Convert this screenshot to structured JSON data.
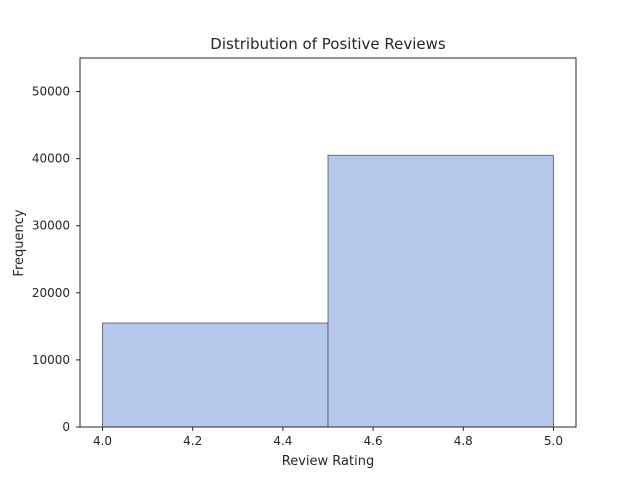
{
  "chart_data": {
    "type": "bar",
    "title": "Distribution of Positive Reviews",
    "xlabel": "Review Rating",
    "ylabel": "Frequency",
    "bins": [
      {
        "x_start": 4.0,
        "x_end": 4.5,
        "value": 15500
      },
      {
        "x_start": 4.5,
        "x_end": 5.0,
        "value": 40500
      }
    ],
    "xlim": [
      3.95,
      5.05
    ],
    "ylim": [
      0,
      55000
    ],
    "x_ticks": [
      4.0,
      4.2,
      4.4,
      4.6,
      4.8,
      5.0
    ],
    "x_tick_labels": [
      "4.0",
      "4.2",
      "4.4",
      "4.6",
      "4.8",
      "5.0"
    ],
    "y_ticks": [
      0,
      10000,
      20000,
      30000,
      40000,
      50000
    ],
    "y_tick_labels": [
      "0",
      "10000",
      "20000",
      "30000",
      "40000",
      "50000"
    ],
    "grid": false,
    "bar_color": "#b4c8ec",
    "bar_edge_color": "#4c4c4c"
  }
}
